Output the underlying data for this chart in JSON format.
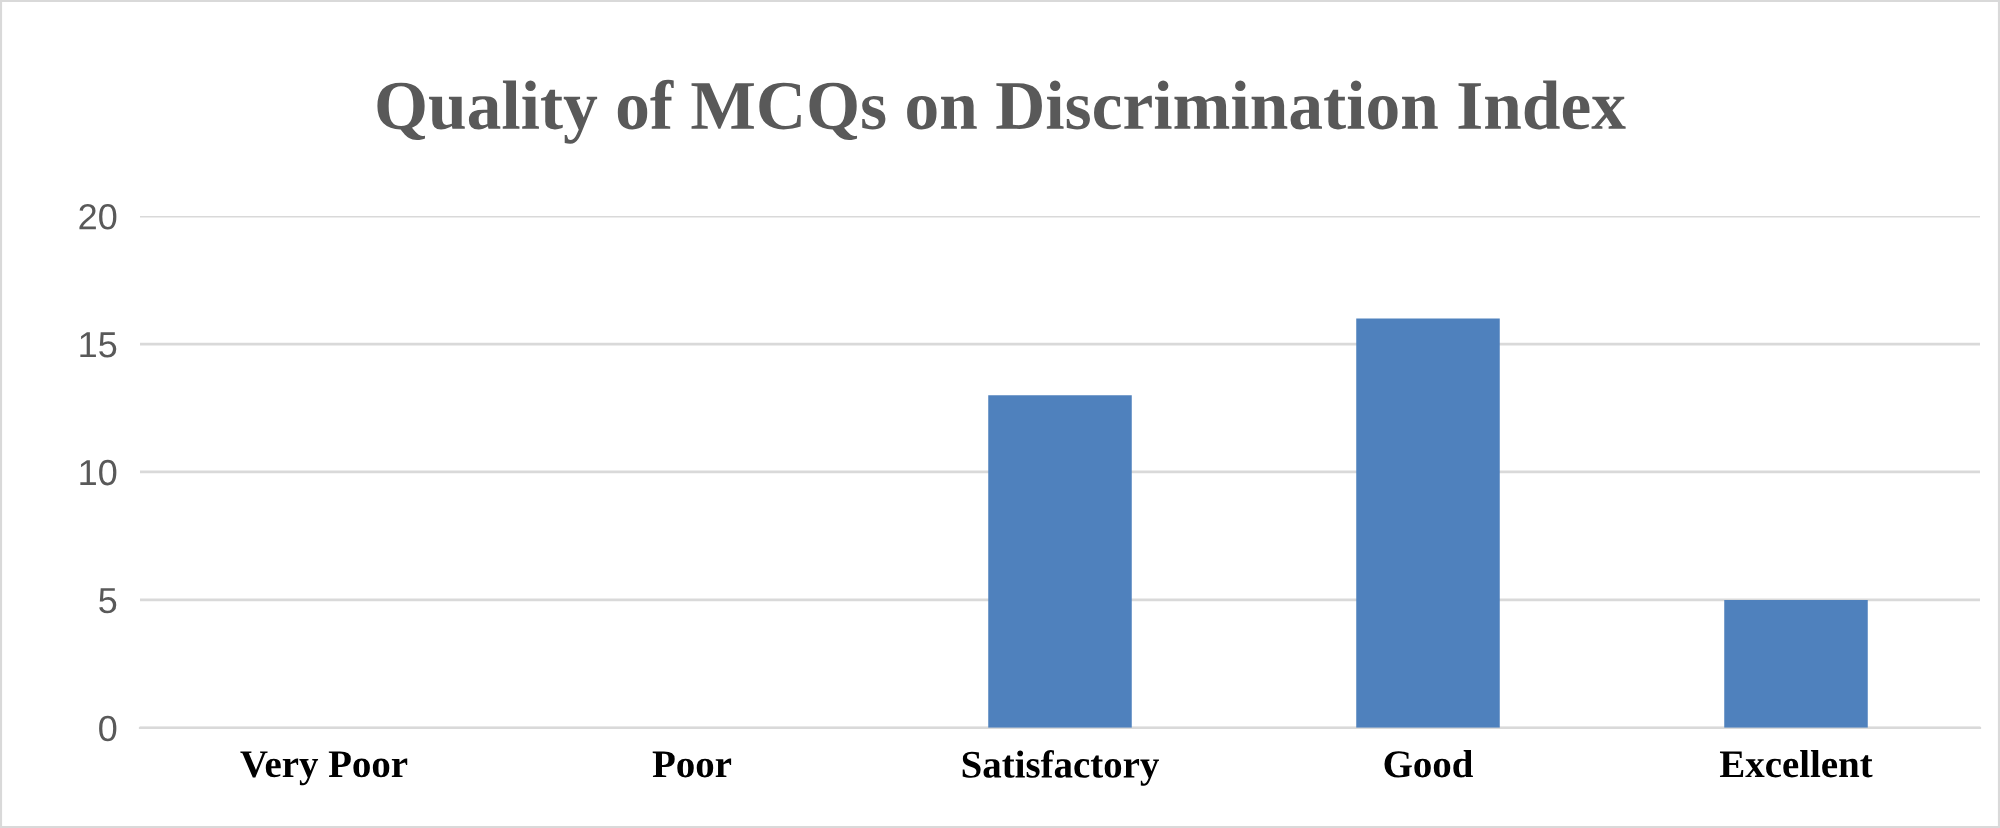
{
  "chart_data": {
    "type": "bar",
    "title": "Quality of MCQs on Discrimination Index",
    "categories": [
      "Very Poor",
      "Poor",
      "Satisfactory",
      "Good",
      "Excellent"
    ],
    "values": [
      0,
      0,
      13,
      16,
      5
    ],
    "color": "#4f81bd",
    "ylim": [
      0,
      20
    ],
    "yticks": [
      0,
      5,
      10,
      15,
      20
    ],
    "grid": "y"
  }
}
